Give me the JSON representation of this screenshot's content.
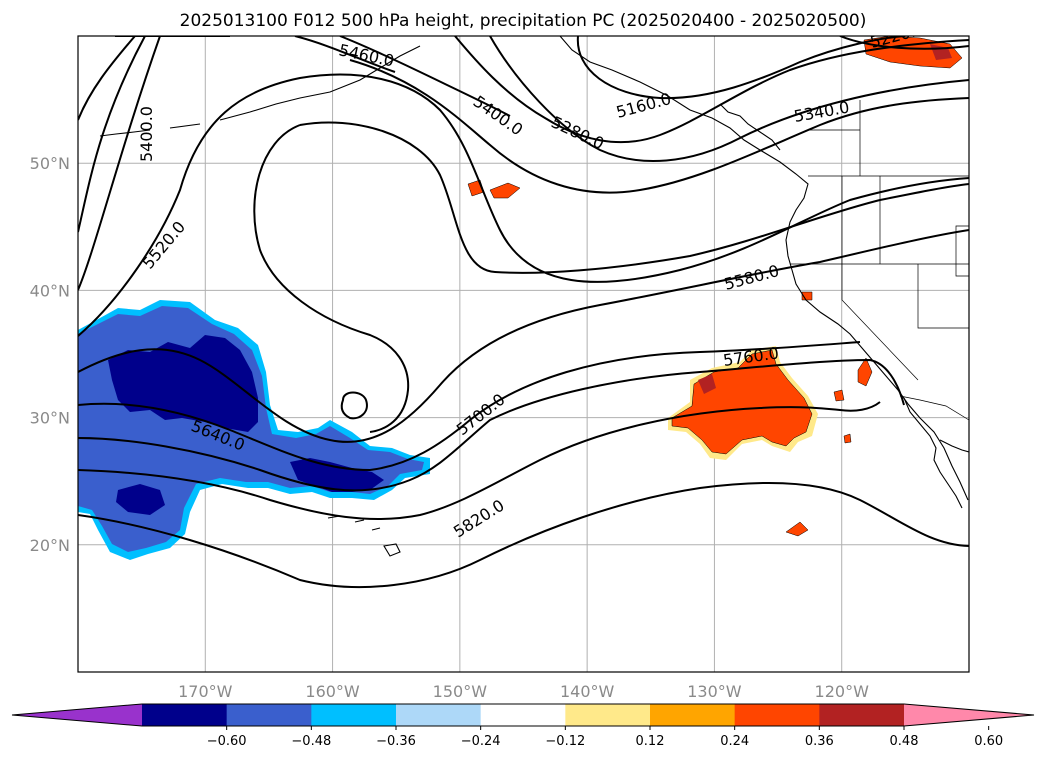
{
  "title": "2025013100 F012 500 hPa height, precipitation PC (2025020400 - 2025020500)",
  "map": {
    "lon_min": -180,
    "lon_max": -110,
    "lat_min": 10,
    "lat_max": 60,
    "grid": true,
    "lat_ticks": [
      {
        "value": 20,
        "label": "20°N"
      },
      {
        "value": 30,
        "label": "30°N"
      },
      {
        "value": 40,
        "label": "40°N"
      },
      {
        "value": 50,
        "label": "50°N"
      }
    ],
    "lon_ticks": [
      {
        "value": -170,
        "label": "170°W"
      },
      {
        "value": -160,
        "label": "160°W"
      },
      {
        "value": -150,
        "label": "150°W"
      },
      {
        "value": -140,
        "label": "140°W"
      },
      {
        "value": -130,
        "label": "130°W"
      },
      {
        "value": -120,
        "label": "120°W"
      }
    ]
  },
  "contour_labels": [
    "5400.0",
    "5460.0",
    "5400.0",
    "5280.0",
    "5160.0",
    "5340.0",
    "5220.0",
    "5520.0",
    "5580.0",
    "5760.0",
    "5700.0",
    "5640.0",
    "5820.0"
  ],
  "colorbar": {
    "colors": [
      "#9932cc",
      "#00008b",
      "#3a5fcd",
      "#00bfff",
      "#add8f8",
      "#ffffff",
      "#ffe98a",
      "#ffa500",
      "#ff4500",
      "#b22222",
      "#ff88aa"
    ],
    "ticks": [
      "-0.60",
      "-0.48",
      "-0.36",
      "-0.24",
      "-0.12",
      "0.12",
      "0.24",
      "0.36",
      "0.48",
      "0.60"
    ]
  }
}
